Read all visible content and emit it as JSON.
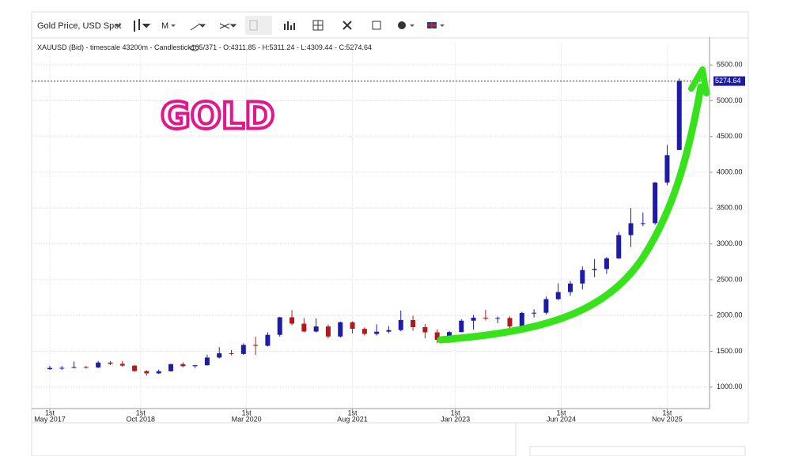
{
  "toolbar": {
    "instrument": "Gold Price, USD Spot",
    "period": "M"
  },
  "chart_data": {
    "type": "candlestick",
    "header": {
      "instrument": "XAUUSD (Bid) - timescale 43200m - Candlestick",
      "bar_count": "105/371",
      "separator": " - ",
      "ohlc_labels": [
        "O:",
        "H:",
        "L:",
        "C:"
      ]
    },
    "annotation": "GOLD",
    "x": [
      0,
      2,
      4,
      6,
      8,
      10,
      12,
      14,
      16,
      18,
      20,
      22,
      24,
      26,
      28,
      30,
      32,
      34,
      36,
      38,
      40,
      42,
      44,
      46,
      48,
      50,
      52,
      54,
      56,
      58,
      60,
      62,
      64,
      66,
      68,
      70,
      72,
      74,
      76,
      78,
      80,
      82,
      84,
      86,
      88,
      90,
      92,
      94,
      96,
      98,
      100,
      102,
      104
    ],
    "open": [
      1250,
      1268,
      1269,
      1280,
      1275,
      1343,
      1325,
      1300,
      1224,
      1192,
      1222,
      1321,
      1292,
      1305,
      1413,
      1472,
      1463,
      1589,
      1577,
      1730,
      1975,
      1886,
      1776,
      1847,
      1707,
      1906,
      1814,
      1743,
      1774,
      1796,
      1937,
      1837,
      1765,
      1660,
      1768,
      1928,
      1969,
      1963,
      1965,
      1848,
      2036,
      2039,
      2229,
      2327,
      2447,
      2634,
      2650,
      2798,
      3123,
      3289,
      3290,
      3858,
      4311.85
    ],
    "high": [
      1296,
      1295,
      1357,
      1298,
      1366,
      1363,
      1366,
      1310,
      1235,
      1245,
      1326,
      1347,
      1310,
      1453,
      1557,
      1516,
      1611,
      1703,
      1765,
      1981,
      2075,
      1965,
      1959,
      1875,
      1916,
      1917,
      1834,
      1877,
      1853,
      2070,
      1998,
      1879,
      1807,
      1786,
      1949,
      2009,
      2079,
      1987,
      1987,
      2052,
      2088,
      2265,
      2450,
      2483,
      2685,
      2790,
      2817,
      3167,
      3500,
      3439,
      3864,
      4381,
      5311.24
    ],
    "low": [
      1243,
      1240,
      1262,
      1260,
      1265,
      1307,
      1282,
      1211,
      1160,
      1183,
      1215,
      1276,
      1266,
      1300,
      1400,
      1445,
      1451,
      1451,
      1568,
      1703,
      1863,
      1765,
      1764,
      1677,
      1690,
      1750,
      1721,
      1721,
      1753,
      1780,
      1787,
      1681,
      1614,
      1616,
      1765,
      1805,
      1932,
      1893,
      1810,
      1808,
      1973,
      2015,
      2211,
      2277,
      2364,
      2536,
      2583,
      2789,
      2957,
      3248,
      3268,
      3820,
      4309.44
    ],
    "close": [
      1268,
      1269,
      1280,
      1275,
      1343,
      1325,
      1300,
      1224,
      1192,
      1222,
      1321,
      1292,
      1305,
      1413,
      1472,
      1463,
      1589,
      1577,
      1730,
      1975,
      1886,
      1776,
      1847,
      1707,
      1906,
      1814,
      1743,
      1774,
      1796,
      1937,
      1837,
      1765,
      1660,
      1768,
      1928,
      1969,
      1963,
      1965,
      1848,
      2036,
      2039,
      2229,
      2327,
      2447,
      2634,
      2650,
      2798,
      3123,
      3289,
      3290,
      3858,
      4240,
      5274.64
    ],
    "up_color": "#1c1ca8",
    "down_color": "#b11a1a",
    "xlim": [
      -3,
      109
    ],
    "xtick_day": "1st",
    "xticks": [
      {
        "value": 0,
        "label": "May 2017"
      },
      {
        "value": 15,
        "label": "Oct 2018"
      },
      {
        "value": 32.5,
        "label": "Mar 2020"
      },
      {
        "value": 50,
        "label": "Aug 2021"
      },
      {
        "value": 67,
        "label": "Jan 2023"
      },
      {
        "value": 84.5,
        "label": "Jun 2024"
      },
      {
        "value": 102,
        "label": "Nov 2025"
      }
    ],
    "ylim": [
      700,
      5800
    ],
    "yticks": [
      {
        "value": 1000,
        "label": "1000.00"
      },
      {
        "value": 1500,
        "label": "1500.00"
      },
      {
        "value": 2000,
        "label": "2000.00"
      },
      {
        "value": 2500,
        "label": "2500.00"
      },
      {
        "value": 3000,
        "label": "3000.00"
      },
      {
        "value": 3500,
        "label": "3500.00"
      },
      {
        "value": 4000,
        "label": "4000.00"
      },
      {
        "value": 4500,
        "label": "4500.00"
      },
      {
        "value": 5000,
        "label": "5000.00"
      },
      {
        "value": 5500,
        "label": "5500.00"
      }
    ],
    "grid": true
  }
}
